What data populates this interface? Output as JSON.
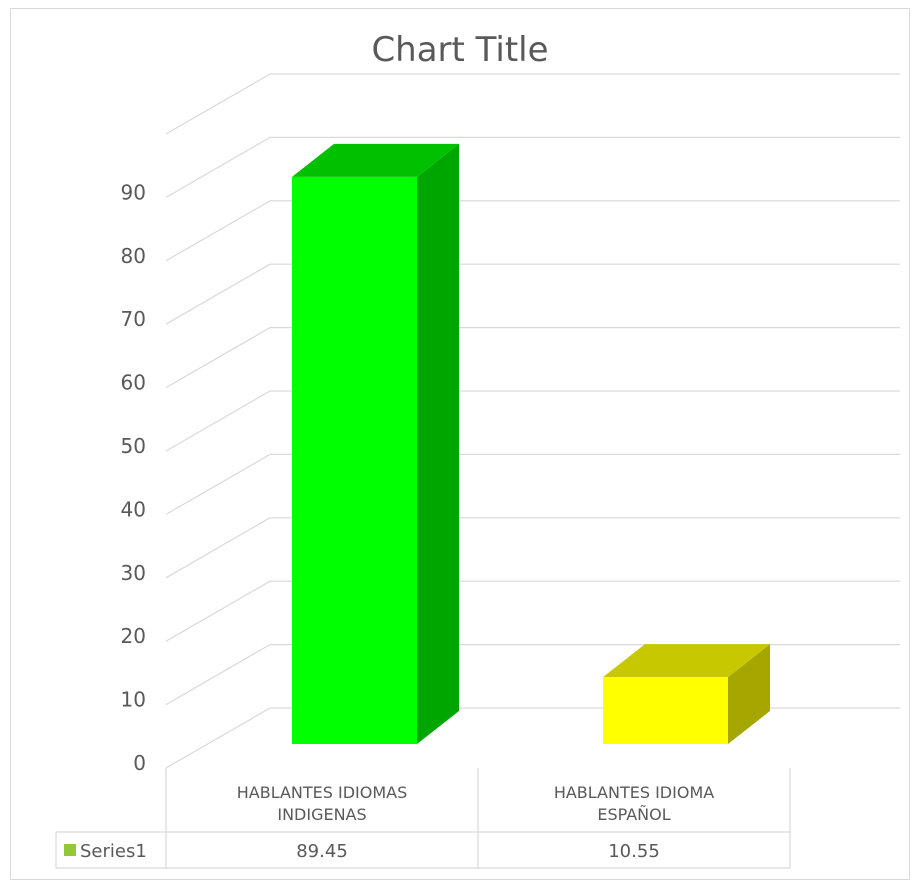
{
  "chart_data": {
    "type": "bar",
    "title": "Chart Title",
    "categories": [
      [
        "HABLANTES IDIOMAS",
        "INDIGENAS"
      ],
      [
        "HABLANTES IDIOMA",
        "ESPAÑOL"
      ]
    ],
    "series": [
      {
        "name": "Series1",
        "values": [
          89.45,
          10.55
        ],
        "value_labels": [
          "89.45",
          "10.55"
        ]
      }
    ],
    "bar_colors": [
      {
        "front": "#00ff00",
        "side": "#00a600",
        "top": "#00c000"
      },
      {
        "front": "#ffff00",
        "side": "#a6a600",
        "top": "#c8c800"
      }
    ],
    "legend_color": "#92c837",
    "y_ticks": [
      "0",
      "10",
      "20",
      "30",
      "40",
      "50",
      "60",
      "70",
      "80",
      "90"
    ],
    "ylim": [
      0,
      100
    ],
    "grid": true,
    "style": "3d-column-with-data-table",
    "xlabel": "",
    "ylabel": ""
  }
}
